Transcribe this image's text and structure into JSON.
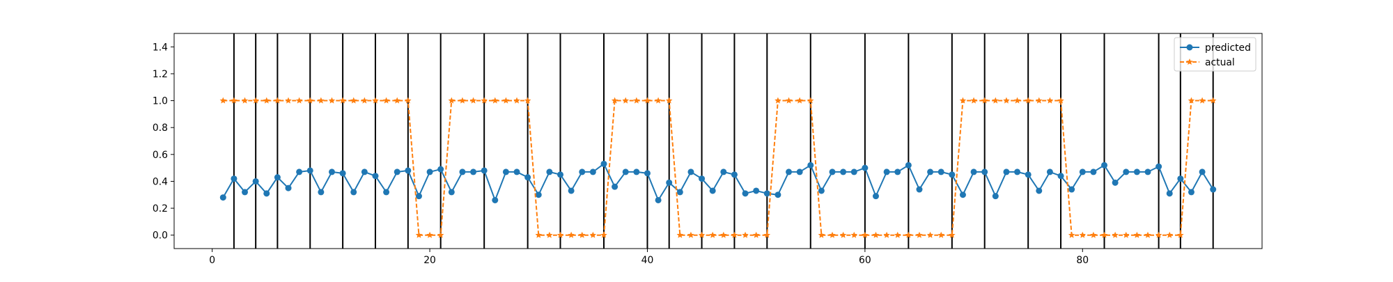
{
  "chart_data": {
    "type": "line",
    "xlim": [
      -3.5,
      96.5
    ],
    "ylim": [
      -0.1,
      1.5
    ],
    "x_ticks": [
      0,
      20,
      40,
      60,
      80
    ],
    "y_ticks": [
      0.0,
      0.2,
      0.4,
      0.6,
      0.8,
      1.0,
      1.2,
      1.4
    ],
    "x_tick_labels": [
      "0",
      "20",
      "40",
      "60",
      "80"
    ],
    "y_tick_labels": [
      "0.0",
      "0.2",
      "0.4",
      "0.6",
      "0.8",
      "1.0",
      "1.2",
      "1.4"
    ],
    "legend_position": "top-right",
    "grid": false,
    "vertical_lines": [
      2,
      4,
      6,
      9,
      12,
      15,
      18,
      21,
      25,
      29,
      32,
      36,
      40,
      42,
      45,
      48,
      51,
      55,
      60,
      64,
      68,
      71,
      75,
      78,
      82,
      87,
      89,
      92
    ],
    "x": [
      1,
      2,
      3,
      4,
      5,
      6,
      7,
      8,
      9,
      10,
      11,
      12,
      13,
      14,
      15,
      16,
      17,
      18,
      19,
      20,
      21,
      22,
      23,
      24,
      25,
      26,
      27,
      28,
      29,
      30,
      31,
      32,
      33,
      34,
      35,
      36,
      37,
      38,
      39,
      40,
      41,
      42,
      43,
      44,
      45,
      46,
      47,
      48,
      49,
      50,
      51,
      52,
      53,
      54,
      55,
      56,
      57,
      58,
      59,
      60,
      61,
      62,
      63,
      64,
      65,
      66,
      67,
      68,
      69,
      70,
      71,
      72,
      73,
      74,
      75,
      76,
      77,
      78,
      79,
      80,
      81,
      82,
      83,
      84,
      85,
      86,
      87,
      88,
      89,
      90,
      91,
      92
    ],
    "series": [
      {
        "name": "predicted",
        "color": "#1f77b4",
        "marker": "circle",
        "line_style": "solid",
        "values": [
          0.28,
          0.42,
          0.32,
          0.4,
          0.31,
          0.43,
          0.35,
          0.47,
          0.48,
          0.32,
          0.47,
          0.46,
          0.32,
          0.47,
          0.44,
          0.32,
          0.47,
          0.48,
          0.29,
          0.47,
          0.49,
          0.32,
          0.47,
          0.47,
          0.48,
          0.26,
          0.47,
          0.47,
          0.43,
          0.3,
          0.47,
          0.45,
          0.33,
          0.47,
          0.47,
          0.53,
          0.36,
          0.47,
          0.47,
          0.46,
          0.26,
          0.39,
          0.32,
          0.47,
          0.42,
          0.33,
          0.47,
          0.45,
          0.31,
          0.33,
          0.31,
          0.3,
          0.47,
          0.47,
          0.52,
          0.33,
          0.47,
          0.47,
          0.47,
          0.5,
          0.29,
          0.47,
          0.47,
          0.52,
          0.34,
          0.47,
          0.47,
          0.45,
          0.3,
          0.47,
          0.47,
          0.29,
          0.47,
          0.47,
          0.45,
          0.33,
          0.47,
          0.44,
          0.34,
          0.47,
          0.47,
          0.52,
          0.39,
          0.47,
          0.47,
          0.47,
          0.51,
          0.31,
          0.42,
          0.32,
          0.47,
          0.34
        ]
      },
      {
        "name": "actual",
        "color": "#ff7f0e",
        "marker": "star",
        "line_style": "dashed",
        "values": [
          1,
          1,
          1,
          1,
          1,
          1,
          1,
          1,
          1,
          1,
          1,
          1,
          1,
          1,
          1,
          1,
          1,
          1,
          0,
          0,
          0,
          1,
          1,
          1,
          1,
          1,
          1,
          1,
          1,
          0,
          0,
          0,
          0,
          0,
          0,
          0,
          1,
          1,
          1,
          1,
          1,
          1,
          0,
          0,
          0,
          0,
          0,
          0,
          0,
          0,
          0,
          1,
          1,
          1,
          1,
          0,
          0,
          0,
          0,
          0,
          0,
          0,
          0,
          0,
          0,
          0,
          0,
          0,
          1,
          1,
          1,
          1,
          1,
          1,
          1,
          1,
          1,
          1,
          0,
          0,
          0,
          0,
          0,
          0,
          0,
          0,
          0,
          0,
          0,
          1,
          1,
          1
        ]
      }
    ]
  }
}
